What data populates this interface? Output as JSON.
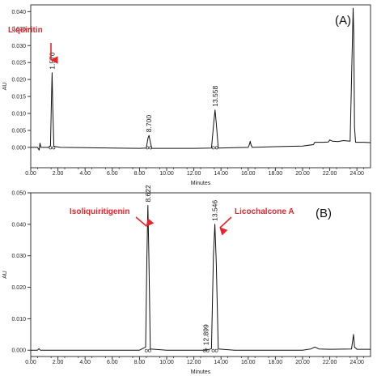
{
  "chart_data": [
    {
      "type": "line",
      "panel_label": "(A)",
      "xlabel": "Minutes",
      "ylabel": "AU",
      "xlim": [
        0,
        25
      ],
      "ylim": [
        -0.006,
        0.042
      ],
      "x_ticks": [
        "0.00",
        "2.00",
        "4.00",
        "6.00",
        "8.00",
        "10.00",
        "12.00",
        "14.00",
        "16.00",
        "18.00",
        "20.00",
        "22.00",
        "24.00"
      ],
      "y_ticks": [
        "0.000",
        "0.005",
        "0.010",
        "0.015",
        "0.020",
        "0.025",
        "0.030",
        "0.035",
        "0.040"
      ],
      "series": [
        {
          "x": [
            0.0,
            0.5,
            0.62,
            0.68,
            0.75,
            1.3,
            1.45,
            1.52,
            1.57,
            1.62,
            1.7,
            2.2,
            4.0,
            6.0,
            8.0,
            8.5,
            8.63,
            8.7,
            8.77,
            8.9,
            10.0,
            12.0,
            13.3,
            13.48,
            13.558,
            13.64,
            13.8,
            15.0,
            16.0,
            16.1,
            16.15,
            16.2,
            16.3,
            18.0,
            20.0,
            20.8,
            20.9,
            21.5,
            21.9,
            22.0,
            22.2,
            22.6,
            23.0,
            23.5,
            23.72,
            23.77,
            23.82,
            23.9,
            24.5,
            25.0
          ],
          "y": [
            0.0,
            0.0,
            -0.0008,
            0.0012,
            0.0,
            0.0,
            0.0005,
            0.013,
            0.022,
            0.012,
            0.0003,
            0.0,
            -0.0001,
            -0.0002,
            -0.0003,
            -0.0002,
            0.0028,
            0.0035,
            0.0022,
            -0.0003,
            -0.0003,
            -0.0003,
            -0.0002,
            0.008,
            0.011,
            0.0075,
            -0.0002,
            -0.0001,
            0.0,
            0.001,
            0.0018,
            0.0008,
            0.0,
            0.0002,
            0.0004,
            0.0008,
            0.0015,
            0.0015,
            0.0016,
            0.0022,
            0.0018,
            0.0017,
            0.002,
            0.0018,
            0.041,
            0.033,
            0.006,
            0.0015,
            0.0015,
            0.0014
          ]
        }
      ],
      "peak_labels": [
        {
          "x": 1.57,
          "y": 0.022,
          "text": "1.570"
        },
        {
          "x": 8.7,
          "y": 0.0035,
          "text": "8.700"
        },
        {
          "x": 13.558,
          "y": 0.011,
          "text": "13.558"
        }
      ],
      "annotations": [
        {
          "text": "Liquiritin",
          "x": 1.57,
          "y": 0.022,
          "color": "#e8232a"
        }
      ]
    },
    {
      "type": "line",
      "panel_label": "(B)",
      "xlabel": "Minutes",
      "ylabel": "AU",
      "xlim": [
        0,
        25
      ],
      "ylim": [
        -0.002,
        0.05
      ],
      "x_ticks": [
        "0.00",
        "2.00",
        "4.00",
        "6.00",
        "8.00",
        "10.00",
        "12.00",
        "14.00",
        "16.00",
        "18.00",
        "20.00",
        "22.00",
        "24.00"
      ],
      "y_ticks": [
        "0.000",
        "0.010",
        "0.020",
        "0.030",
        "0.040",
        "0.050"
      ],
      "series": [
        {
          "x": [
            0.0,
            0.5,
            0.6,
            0.7,
            1.0,
            4.0,
            8.0,
            8.45,
            8.55,
            8.62,
            8.69,
            8.8,
            10.0,
            12.0,
            12.85,
            12.9,
            12.95,
            13.3,
            13.44,
            13.546,
            13.65,
            13.8,
            15.0,
            18.0,
            20.0,
            20.6,
            20.9,
            21.2,
            22.0,
            23.6,
            23.75,
            23.82,
            24.0,
            25.0
          ],
          "y": [
            0.0,
            0.0,
            0.0005,
            0.0,
            0.0,
            0.0,
            0.0,
            0.001,
            0.03,
            0.046,
            0.03,
            0.0004,
            0.0,
            0.0,
            0.0,
            0.0005,
            0.0,
            0.0005,
            0.03,
            0.04,
            0.028,
            0.0004,
            0.0,
            0.0,
            0.0,
            0.0004,
            0.001,
            0.0004,
            0.0003,
            0.0004,
            0.005,
            0.001,
            0.0003,
            0.0003
          ]
        }
      ],
      "peak_labels": [
        {
          "x": 8.622,
          "y": 0.046,
          "text": "8.622"
        },
        {
          "x": 13.546,
          "y": 0.04,
          "text": "13.546"
        },
        {
          "x": 12.899,
          "y": 0.0005,
          "text": "12.899"
        }
      ],
      "annotations": [
        {
          "text": "Isoliquiritigenin",
          "x": 8.622,
          "y": 0.046,
          "color": "#e8232a"
        },
        {
          "text": "Licochalcone  A",
          "x": 13.546,
          "y": 0.04,
          "color": "#e8232a"
        }
      ]
    }
  ]
}
